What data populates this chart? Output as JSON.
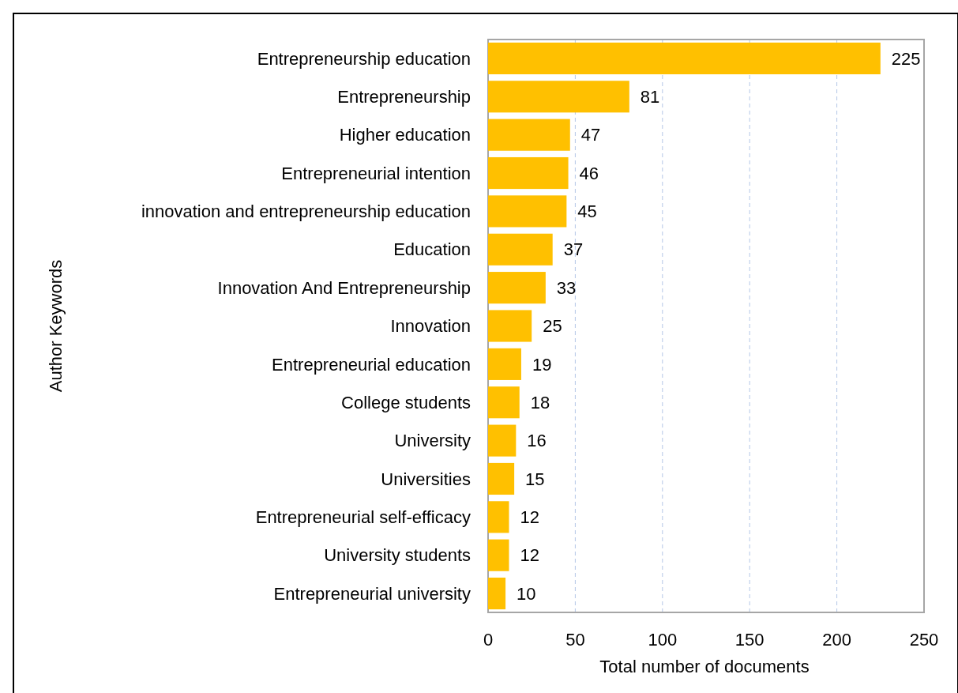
{
  "chart_data": {
    "type": "bar",
    "orientation": "horizontal",
    "ylabel": "Author Keywords",
    "xlabel": "Total number of documents",
    "categories": [
      "Entrepreneurship education",
      "Entrepreneurship",
      "Higher education",
      "Entrepreneurial intention",
      "innovation and entrepreneurship education",
      "Education",
      "Innovation And Entrepreneurship",
      "Innovation",
      "Entrepreneurial education",
      "College students",
      "University",
      "Universities",
      "Entrepreneurial self-efficacy",
      "University students",
      "Entrepreneurial university"
    ],
    "values": [
      225,
      81,
      47,
      46,
      45,
      37,
      33,
      25,
      19,
      18,
      16,
      15,
      12,
      12,
      10
    ],
    "color": "#ffc000",
    "xlim": [
      0,
      250
    ],
    "xticks": [
      0,
      50,
      100,
      150,
      200,
      250
    ],
    "grid": "x",
    "data_labels": true
  }
}
